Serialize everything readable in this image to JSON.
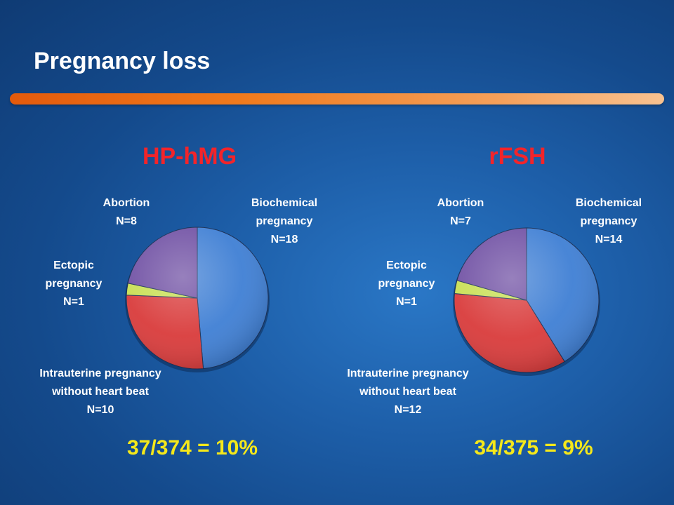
{
  "title": "Pregnancy loss",
  "colors": {
    "biochemical": "#3f7fd4",
    "intrauterine": "#d93b3b",
    "ectopic": "#c8df52",
    "abortion": "#6f4fa3",
    "chart_title": "#f3242a",
    "ratio": "#f5e81a"
  },
  "chart_data": [
    {
      "type": "pie",
      "title": "HP-hMG",
      "categories": [
        "Biochemical pregnancy",
        "Intrauterine pregnancy without heart beat",
        "Ectopic pregnancy",
        "Abortion"
      ],
      "values": [
        18,
        10,
        1,
        8
      ],
      "labels": {
        "biochemical": {
          "line1": "Biochemical",
          "line2": "pregnancy",
          "line3": "N=18"
        },
        "intrauterine": {
          "line1": "Intrauterine pregnancy",
          "line2": "without heart beat",
          "line3": "N=10"
        },
        "ectopic": {
          "line1": "Ectopic",
          "line2": "pregnancy",
          "line3": "N=1"
        },
        "abortion": {
          "line1": "Abortion",
          "line2": "N=8"
        }
      },
      "summary": "37/374 = 10%"
    },
    {
      "type": "pie",
      "title": "rFSH",
      "categories": [
        "Biochemical pregnancy",
        "Intrauterine pregnancy without heart beat",
        "Ectopic pregnancy",
        "Abortion"
      ],
      "values": [
        14,
        12,
        1,
        7
      ],
      "labels": {
        "biochemical": {
          "line1": "Biochemical",
          "line2": "pregnancy",
          "line3": "N=14"
        },
        "intrauterine": {
          "line1": "Intrauterine pregnancy",
          "line2": "without heart beat",
          "line3": "N=12"
        },
        "ectopic": {
          "line1": "Ectopic",
          "line2": "pregnancy",
          "line3": "N=1"
        },
        "abortion": {
          "line1": "Abortion",
          "line2": "N=7"
        }
      },
      "summary": "34/375 = 9%"
    }
  ]
}
